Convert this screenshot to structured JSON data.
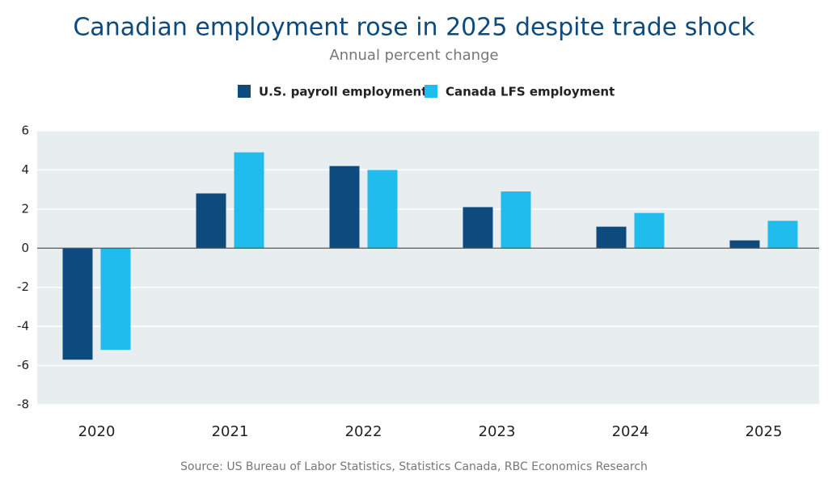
{
  "chart_data": {
    "type": "bar",
    "title": "Canadian employment rose in 2025 despite trade shock",
    "subtitle": "Annual percent change",
    "source": "Source: US Bureau of Labor Statistics, Statistics Canada, RBC Economics Research",
    "categories": [
      "2020",
      "2021",
      "2022",
      "2023",
      "2024",
      "2025"
    ],
    "series": [
      {
        "name": "U.S. payroll employment",
        "color": "#0d4a7e",
        "values": [
          -5.7,
          2.8,
          4.2,
          2.1,
          1.1,
          0.4
        ]
      },
      {
        "name": "Canada LFS employment",
        "color": "#20bcee",
        "values": [
          -5.2,
          4.9,
          4.0,
          2.9,
          1.8,
          1.4
        ]
      }
    ],
    "ylim": [
      -8,
      6
    ],
    "yticks": [
      -8,
      -6,
      -4,
      -2,
      0,
      2,
      4,
      6
    ],
    "grid": true
  }
}
